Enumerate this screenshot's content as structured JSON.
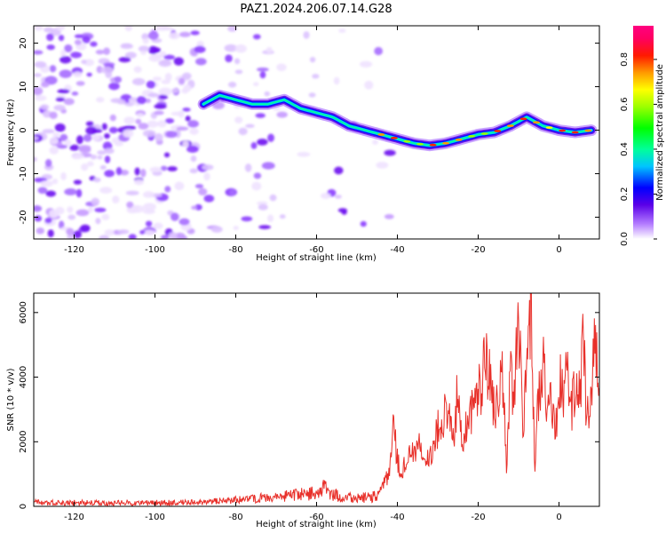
{
  "figure": {
    "title": "PAZ1.2024.206.07.14.G28"
  },
  "chart_data": [
    {
      "type": "heatmap",
      "xlabel": "Height of straight line (km)",
      "ylabel": "Frequency (Hz)",
      "xlim": [
        -130,
        10
      ],
      "ylim": [
        -25,
        24
      ],
      "xticks": [
        -120,
        -100,
        -80,
        -60,
        -40,
        -20,
        0
      ],
      "yticks": [
        -20,
        -10,
        0,
        10,
        20
      ],
      "colorbar": {
        "label": "Normalized spectral amplitude",
        "range": [
          0,
          0.95
        ],
        "ticks": [
          0.0,
          0.2,
          0.4,
          0.6,
          0.8
        ],
        "colormap": "gist_ncar-like (white to purple to blue to cyan to green to yellow to orange to red to magenta)"
      },
      "ridge": {
        "description": "dominant signal frequency vs height",
        "x": [
          -88,
          -84,
          -80,
          -76,
          -72,
          -68,
          -64,
          -60,
          -56,
          -52,
          -48,
          -44,
          -40,
          -36,
          -32,
          -28,
          -24,
          -20,
          -16,
          -12,
          -8,
          -4,
          0,
          4,
          8
        ],
        "y": [
          6,
          8,
          7,
          6,
          6,
          7,
          5,
          4,
          3,
          1,
          0,
          -1,
          -2,
          -3,
          -3.5,
          -3,
          -2,
          -1,
          -0.5,
          1,
          3,
          1,
          0,
          -0.5,
          0
        ]
      },
      "grid": false
    },
    {
      "type": "line",
      "xlabel": "Height of straight line (km)",
      "ylabel": "SNR (10 * v/v)",
      "xlim": [
        -130,
        10
      ],
      "ylim": [
        0,
        6600
      ],
      "xticks": [
        -120,
        -100,
        -80,
        -60,
        -40,
        -20,
        0
      ],
      "yticks": [
        0,
        2000,
        4000,
        6000
      ],
      "series": [
        {
          "color": "#e8302a",
          "x": [
            -130,
            -120,
            -110,
            -100,
            -90,
            -80,
            -75,
            -70,
            -65,
            -60,
            -58,
            -55,
            -50,
            -46,
            -44,
            -42,
            -41,
            -40,
            -39,
            -38,
            -36,
            -34,
            -32,
            -30,
            -29,
            -28,
            -27,
            -26,
            -25,
            -24,
            -22,
            -20,
            -18,
            -16,
            -14,
            -13,
            -12,
            -11,
            -10,
            -9,
            -8,
            -7,
            -6,
            -5,
            -4,
            -3,
            -2,
            -1,
            0,
            1,
            2,
            3,
            4,
            5,
            6,
            7,
            8,
            9,
            10
          ],
          "y": [
            120,
            110,
            100,
            110,
            120,
            200,
            250,
            300,
            350,
            400,
            550,
            320,
            250,
            300,
            600,
            1000,
            2400,
            1500,
            1000,
            1300,
            1900,
            2000,
            1500,
            2500,
            2100,
            3100,
            2600,
            2000,
            3900,
            2200,
            3000,
            3400,
            4700,
            3000,
            4000,
            1300,
            4200,
            3500,
            5800,
            2500,
            4000,
            6600,
            1200,
            3500,
            4500,
            2800,
            3900,
            2000,
            4100,
            3200,
            4600,
            2800,
            3900,
            3400,
            5000,
            2600,
            3800,
            5200,
            3500
          ]
        }
      ],
      "grid": false
    }
  ]
}
